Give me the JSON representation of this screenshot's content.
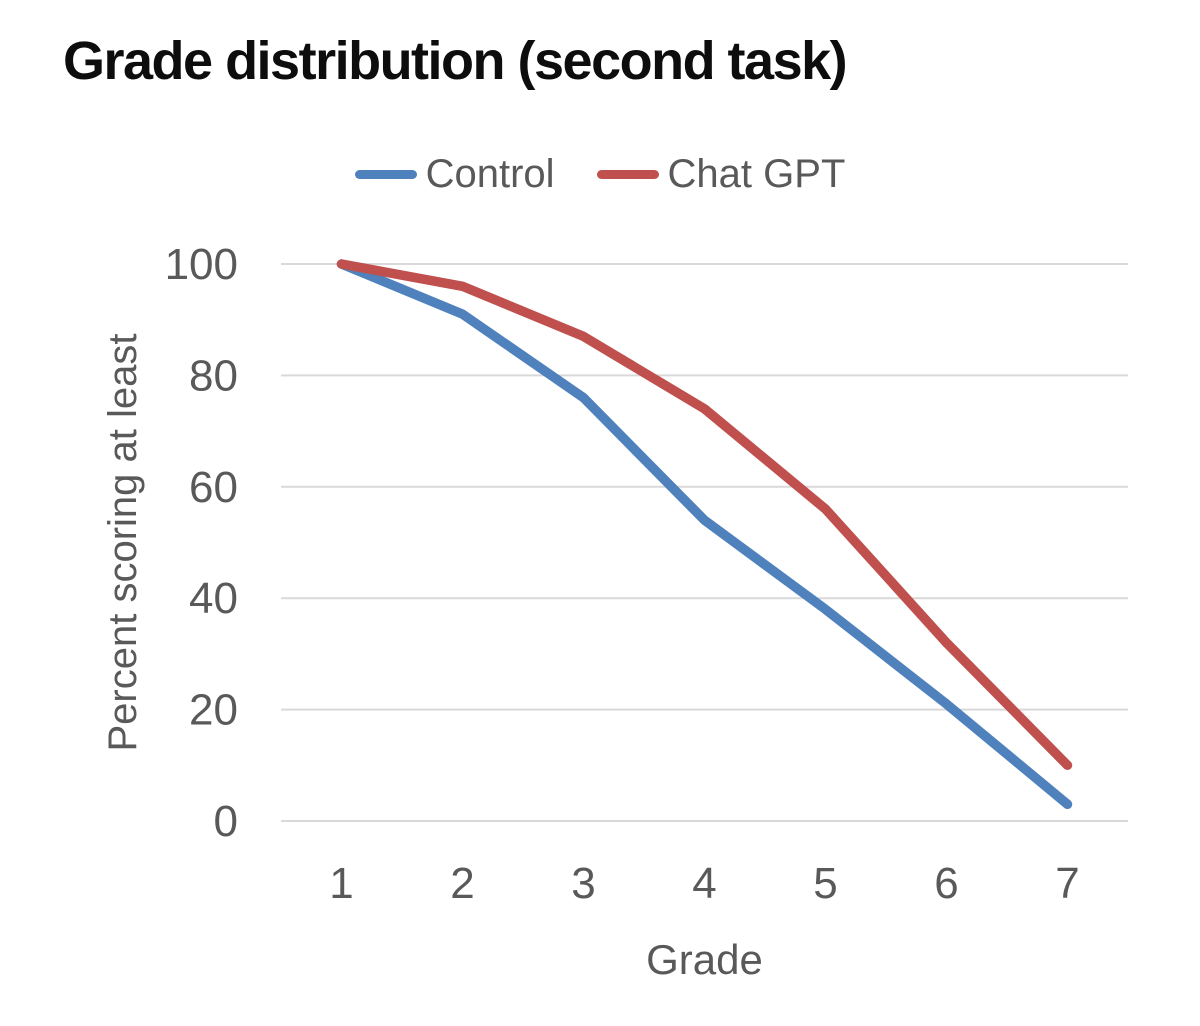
{
  "chart_data": {
    "type": "line",
    "title": "Grade distribution (second task)",
    "xlabel": "Grade",
    "ylabel": "Percent scoring at least",
    "categories": [
      1,
      2,
      3,
      4,
      5,
      6,
      7
    ],
    "series": [
      {
        "name": "Control",
        "color": "#4f81bd",
        "values": [
          100,
          91,
          76,
          54,
          38,
          21,
          3
        ]
      },
      {
        "name": "Chat GPT",
        "color": "#c0504d",
        "values": [
          100,
          96,
          87,
          74,
          56,
          32,
          10
        ]
      }
    ],
    "ylim": [
      0,
      100
    ],
    "yticks": [
      0,
      20,
      40,
      60,
      80,
      100
    ],
    "grid": "horizontal-only",
    "legend_position": "top-center",
    "colors": {
      "gridline": "#d9d9d9",
      "axis_text": "#595959",
      "title_text": "#0d0d0d",
      "background": "#ffffff"
    }
  }
}
